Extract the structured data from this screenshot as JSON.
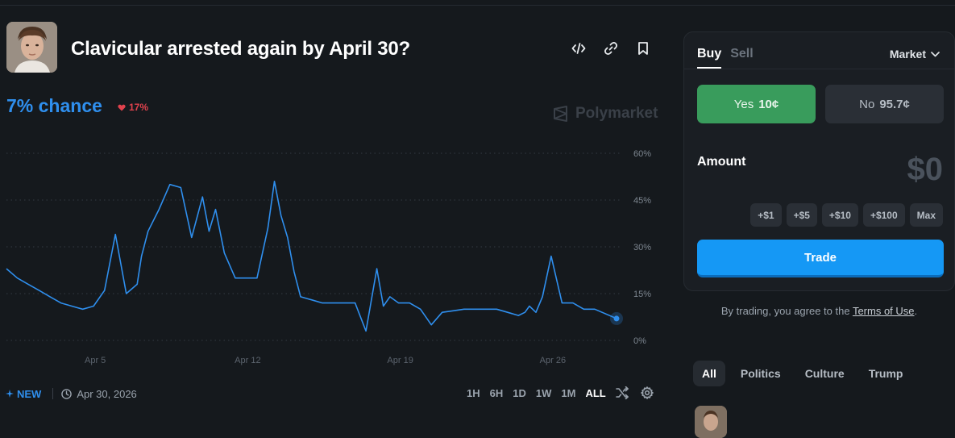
{
  "market": {
    "title": "Clavicular arrested again by April 30?",
    "chance_text": "7% chance",
    "change_text": "17%",
    "change_direction": "down",
    "brand": "Polymarket"
  },
  "header_icons": [
    "embed-code-icon",
    "link-icon",
    "bookmark-icon"
  ],
  "chart_data": {
    "type": "line",
    "x_tick_labels": [
      "Apr 5",
      "Apr 12",
      "Apr 19",
      "Apr 26"
    ],
    "y_tick_labels": [
      "60%",
      "45%",
      "30%",
      "15%",
      "0%"
    ],
    "ylim": [
      0,
      60
    ],
    "grid": true,
    "series": [
      {
        "color": "#2f8fee",
        "x": [
          0.0,
          0.5,
          1.0,
          1.5,
          2.0,
          2.5,
          3.0,
          3.5,
          4.0,
          4.5,
          5.0,
          5.5,
          6.0,
          6.2,
          6.5,
          7.0,
          7.5,
          8.0,
          8.5,
          9.0,
          9.3,
          9.6,
          10.0,
          10.5,
          11.0,
          11.5,
          12.0,
          12.3,
          12.6,
          12.9,
          13.2,
          13.5,
          14.0,
          14.5,
          15.0,
          15.5,
          16.0,
          16.5,
          17.0,
          17.3,
          17.6,
          18.0,
          18.5,
          19.0,
          19.5,
          20.0,
          20.5,
          21.0,
          21.5,
          22.0,
          22.5,
          23.0,
          23.5,
          23.8,
          24.0,
          24.3,
          24.6,
          25.0,
          25.5,
          26.0,
          26.5,
          27.0,
          28.0
        ],
        "values": [
          23,
          20,
          18,
          16,
          14,
          12,
          11,
          10,
          11,
          16,
          34,
          15,
          18,
          27,
          35,
          42,
          50,
          49,
          33,
          46,
          35,
          42,
          28,
          20,
          20,
          20,
          36,
          51,
          40,
          33,
          22,
          14,
          13,
          12,
          12,
          12,
          12,
          3,
          23,
          11,
          14,
          12,
          12,
          10,
          5,
          9,
          9.5,
          10,
          10,
          10,
          10,
          9,
          8,
          9,
          11,
          9,
          14,
          27,
          12,
          12,
          10,
          10,
          7
        ]
      }
    ]
  },
  "bottom": {
    "new_label": "NEW",
    "date": "Apr 30, 2026",
    "ranges": [
      "1H",
      "6H",
      "1D",
      "1W",
      "1M",
      "ALL"
    ],
    "active_range": "ALL"
  },
  "trade_panel": {
    "tabs": [
      "Buy",
      "Sell"
    ],
    "active_tab": "Buy",
    "order_type": "Market",
    "yes_label": "Yes",
    "yes_price": "10¢",
    "no_label": "No",
    "no_price": "95.7¢",
    "amount_label": "Amount",
    "amount_value": "$0",
    "chips": [
      "+$1",
      "+$5",
      "+$10",
      "+$100",
      "Max"
    ],
    "trade_button": "Trade"
  },
  "terms": {
    "prefix": "By trading, you agree to the ",
    "link": "Terms of Use",
    "suffix": "."
  },
  "categories": {
    "items": [
      "All",
      "Politics",
      "Culture",
      "Trump"
    ],
    "active": "All"
  },
  "colors": {
    "background": "#15191d",
    "accent_blue": "#2f8fee",
    "yes_green": "#399c5c",
    "down_red": "#e0424d",
    "trade_blue": "#1598f5"
  }
}
